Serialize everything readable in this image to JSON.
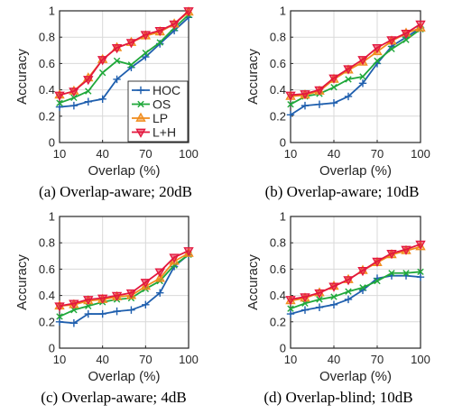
{
  "chart_data": [
    {
      "type": "line",
      "caption": "(a) Overlap-aware; 20dB",
      "xlabel": "Overlap (%)",
      "ylabel": "Accuracy",
      "xlim": [
        10,
        100
      ],
      "ylim": [
        0,
        1
      ],
      "xticks": [
        10,
        40,
        70,
        100
      ],
      "yticks": [
        0,
        0.2,
        0.4,
        0.6,
        0.8,
        1
      ],
      "grid": true,
      "legend": "bottom-right",
      "x": [
        10,
        20,
        30,
        40,
        50,
        60,
        70,
        80,
        90,
        100
      ],
      "series": [
        {
          "name": "HOC",
          "values": [
            0.27,
            0.28,
            0.31,
            0.33,
            0.48,
            0.57,
            0.65,
            0.75,
            0.85,
            0.95
          ]
        },
        {
          "name": "OS",
          "values": [
            0.3,
            0.34,
            0.39,
            0.53,
            0.62,
            0.59,
            0.68,
            0.76,
            0.87,
            0.97
          ]
        },
        {
          "name": "LP",
          "values": [
            0.36,
            0.39,
            0.49,
            0.63,
            0.72,
            0.76,
            0.81,
            0.84,
            0.9,
            0.99
          ]
        },
        {
          "name": "L+H",
          "values": [
            0.36,
            0.39,
            0.48,
            0.63,
            0.72,
            0.76,
            0.82,
            0.85,
            0.9,
            1.0
          ]
        }
      ]
    },
    {
      "type": "line",
      "caption": "(b) Overlap-aware; 10dB",
      "xlabel": "Overlap (%)",
      "ylabel": "Accuracy",
      "xlim": [
        10,
        100
      ],
      "ylim": [
        0,
        1
      ],
      "xticks": [
        10,
        40,
        70,
        100
      ],
      "yticks": [
        0,
        0.2,
        0.4,
        0.6,
        0.8,
        1
      ],
      "grid": true,
      "x": [
        10,
        20,
        30,
        40,
        50,
        60,
        70,
        80,
        90,
        100
      ],
      "series": [
        {
          "name": "HOC",
          "values": [
            0.21,
            0.28,
            0.29,
            0.3,
            0.35,
            0.45,
            0.6,
            0.73,
            0.8,
            0.87
          ]
        },
        {
          "name": "OS",
          "values": [
            0.29,
            0.35,
            0.37,
            0.42,
            0.48,
            0.5,
            0.62,
            0.71,
            0.78,
            0.86
          ]
        },
        {
          "name": "LP",
          "values": [
            0.35,
            0.36,
            0.39,
            0.48,
            0.55,
            0.61,
            0.69,
            0.77,
            0.83,
            0.87
          ]
        },
        {
          "name": "L+H",
          "values": [
            0.36,
            0.37,
            0.4,
            0.49,
            0.56,
            0.63,
            0.72,
            0.78,
            0.83,
            0.9
          ]
        }
      ]
    },
    {
      "type": "line",
      "caption": "(c) Overlap-aware; 4dB",
      "xlabel": "Overlap (%)",
      "ylabel": "Accuracy",
      "xlim": [
        10,
        100
      ],
      "ylim": [
        0,
        1
      ],
      "xticks": [
        10,
        40,
        70,
        100
      ],
      "yticks": [
        0,
        0.2,
        0.4,
        0.6,
        0.8,
        1
      ],
      "grid": true,
      "x": [
        10,
        20,
        30,
        40,
        50,
        60,
        70,
        80,
        90,
        100
      ],
      "series": [
        {
          "name": "HOC",
          "values": [
            0.2,
            0.19,
            0.26,
            0.26,
            0.28,
            0.29,
            0.33,
            0.42,
            0.62,
            0.71
          ]
        },
        {
          "name": "OS",
          "values": [
            0.24,
            0.29,
            0.32,
            0.35,
            0.37,
            0.38,
            0.45,
            0.51,
            0.63,
            0.71
          ]
        },
        {
          "name": "LP",
          "values": [
            0.32,
            0.33,
            0.36,
            0.37,
            0.39,
            0.4,
            0.47,
            0.53,
            0.66,
            0.72
          ]
        },
        {
          "name": "L+H",
          "values": [
            0.32,
            0.34,
            0.37,
            0.38,
            0.4,
            0.42,
            0.5,
            0.58,
            0.69,
            0.74
          ]
        }
      ]
    },
    {
      "type": "line",
      "caption": "(d) Overlap-blind; 10dB",
      "xlabel": "Overlap (%)",
      "ylabel": "Accuracy",
      "xlim": [
        10,
        100
      ],
      "ylim": [
        0,
        1
      ],
      "xticks": [
        10,
        40,
        70,
        100
      ],
      "yticks": [
        0,
        0.2,
        0.4,
        0.6,
        0.8,
        1
      ],
      "grid": true,
      "x": [
        10,
        20,
        30,
        40,
        50,
        60,
        70,
        80,
        90,
        100
      ],
      "series": [
        {
          "name": "HOC",
          "values": [
            0.26,
            0.29,
            0.31,
            0.33,
            0.37,
            0.44,
            0.53,
            0.55,
            0.55,
            0.54
          ]
        },
        {
          "name": "OS",
          "values": [
            0.3,
            0.34,
            0.37,
            0.39,
            0.43,
            0.46,
            0.51,
            0.57,
            0.57,
            0.58
          ]
        },
        {
          "name": "LP",
          "values": [
            0.36,
            0.38,
            0.42,
            0.47,
            0.52,
            0.59,
            0.65,
            0.71,
            0.74,
            0.77
          ]
        },
        {
          "name": "L+H",
          "values": [
            0.37,
            0.39,
            0.42,
            0.47,
            0.52,
            0.59,
            0.66,
            0.72,
            0.75,
            0.79
          ]
        }
      ]
    }
  ],
  "series_colors": {
    "HOC": "#1f5fae",
    "OS": "#1fa83a",
    "LP": "#f08c1c",
    "L+H": "#e3173e"
  },
  "series_markers": {
    "HOC": "plus",
    "OS": "x",
    "LP": "triangle-up",
    "L+H": "triangle-down"
  }
}
